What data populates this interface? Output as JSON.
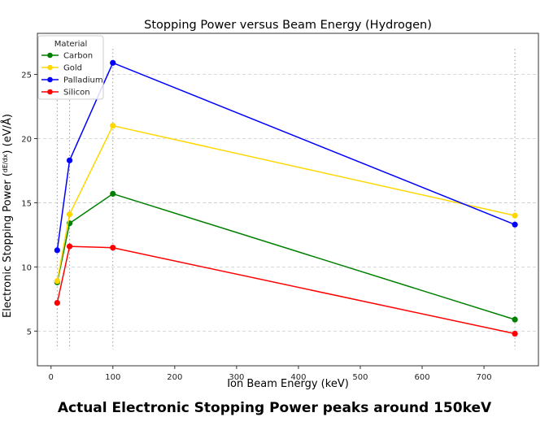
{
  "chart_data": {
    "type": "line",
    "title": "Stopping Power versus Beam Energy (Hydrogen)",
    "xlabel": "Ion Beam Energy (keV)",
    "ylabel": "Electronic Stopping Power (dE/dx) (eV/Å)",
    "ylabel_prefix": "Electronic Stopping Power (",
    "ylabel_frac_num": "dE",
    "ylabel_frac_den": "dx",
    "ylabel_suffix": ") (eV/Å)",
    "xlim": [
      -22,
      788
    ],
    "ylim": [
      2.3,
      28.2
    ],
    "xticks": [
      0,
      100,
      200,
      300,
      400,
      500,
      600,
      700
    ],
    "yticks": [
      5,
      10,
      15,
      20,
      25
    ],
    "grid": "horizontal dashed",
    "vertical_markers": [
      10,
      30,
      100,
      750
    ],
    "legend": {
      "title": "Material",
      "placement": "top-left"
    },
    "x": [
      10,
      30,
      100,
      750
    ],
    "series": [
      {
        "name": "Carbon",
        "color": "#008000",
        "values": [
          8.8,
          13.4,
          15.7,
          5.9
        ]
      },
      {
        "name": "Gold",
        "color": "#ffd700",
        "values": [
          8.9,
          14.1,
          21.0,
          14.0
        ]
      },
      {
        "name": "Palladium",
        "color": "#0000ff",
        "values": [
          11.3,
          18.3,
          25.9,
          13.3
        ]
      },
      {
        "name": "Silicon",
        "color": "#ff0000",
        "values": [
          7.2,
          11.6,
          11.5,
          4.8
        ]
      }
    ]
  },
  "caption": "Actual Electronic Stopping Power peaks around 150keV"
}
